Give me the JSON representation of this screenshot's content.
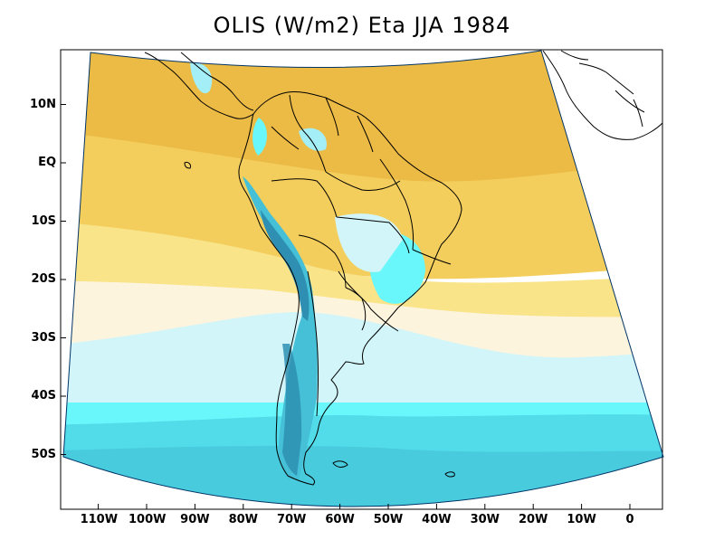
{
  "title": "OLIS (W/m2) Eta JJA 1984",
  "y_ticks": [
    {
      "label": "10N",
      "lat": 10
    },
    {
      "label": "EQ",
      "lat": 0
    },
    {
      "label": "10S",
      "lat": -10
    },
    {
      "label": "20S",
      "lat": -20
    },
    {
      "label": "30S",
      "lat": -30
    },
    {
      "label": "40S",
      "lat": -40
    },
    {
      "label": "50S",
      "lat": -50
    }
  ],
  "x_ticks": [
    {
      "label": "110W",
      "lon": -110
    },
    {
      "label": "100W",
      "lon": -100
    },
    {
      "label": "90W",
      "lon": -90
    },
    {
      "label": "80W",
      "lon": -80
    },
    {
      "label": "70W",
      "lon": -70
    },
    {
      "label": "60W",
      "lon": -60
    },
    {
      "label": "50W",
      "lon": -50
    },
    {
      "label": "40W",
      "lon": -40
    },
    {
      "label": "30W",
      "lon": -30
    },
    {
      "label": "20W",
      "lon": -20
    },
    {
      "label": "10W",
      "lon": -10
    },
    {
      "label": "0",
      "lon": 0
    }
  ],
  "colors": {
    "orange": "#ecbb45",
    "gold": "#f3ce5c",
    "yellow": "#f9e48a",
    "cream": "#fdf4dd",
    "pale_cyan": "#d2f5fa",
    "light_cyan": "#a4eef7",
    "cyan": "#69f7fb",
    "mid_cyan": "#52dcea",
    "teal": "#45c0d6",
    "dark_teal": "#2e8fb2",
    "outline": "#000000"
  }
}
